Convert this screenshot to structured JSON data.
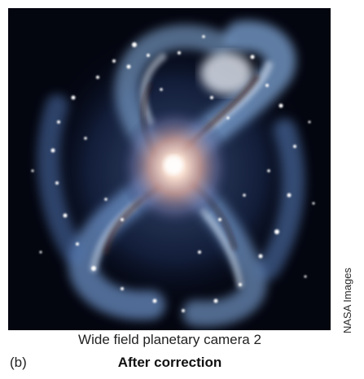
{
  "figure": {
    "caption": "Wide field planetary camera 2",
    "panel_label": "(b)",
    "subcaption": "After correction",
    "credit": "NASA Images",
    "image": {
      "subject": "spiral-galaxy-photo",
      "colors": {
        "background": "#03050f",
        "arms": "#7fa6d6",
        "arm_highlight": "#d9e6f5",
        "core": "#f3d6c6",
        "dust": "#3a1c14"
      }
    }
  }
}
